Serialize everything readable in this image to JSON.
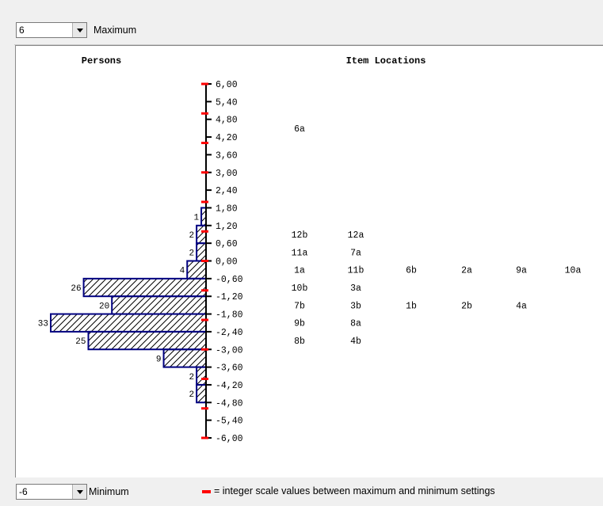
{
  "max_select": {
    "value": "6",
    "label": "Maximum"
  },
  "min_select": {
    "value": "-6",
    "label": "Minimum"
  },
  "legend_text": "= integer scale values between maximum and minimum settings",
  "colors": {
    "bar_border": "#000080",
    "integer_tick": "#ff0000",
    "axis": "#000000"
  },
  "chart_data": {
    "type": "bar",
    "persons_header": "Persons",
    "items_header": "Item Locations",
    "axis_labels": [
      "6,00",
      "5,40",
      "4,80",
      "4,20",
      "3,60",
      "3,00",
      "2,40",
      "1,80",
      "1,20",
      "0,60",
      "0,00",
      "-0,60",
      "-1,20",
      "-1,80",
      "-2,40",
      "-3,00",
      "-3,60",
      "-4,20",
      "-4,80",
      "-5,40",
      "-6,00"
    ],
    "integer_ticks": [
      6,
      5,
      4,
      3,
      2,
      1,
      0,
      -1,
      -2,
      -3,
      -4,
      -5,
      -6
    ],
    "ylim": [
      -6,
      6
    ],
    "persons": [
      {
        "from": 1.8,
        "to": 1.2,
        "count": 1
      },
      {
        "from": 1.2,
        "to": 0.6,
        "count": 2
      },
      {
        "from": 0.6,
        "to": 0.0,
        "count": 2
      },
      {
        "from": 0.0,
        "to": -0.6,
        "count": 4
      },
      {
        "from": -0.6,
        "to": -1.2,
        "count": 26
      },
      {
        "from": -1.2,
        "to": -1.8,
        "count": 20
      },
      {
        "from": -1.8,
        "to": -2.4,
        "count": 33
      },
      {
        "from": -2.4,
        "to": -3.0,
        "count": 25
      },
      {
        "from": -3.0,
        "to": -3.6,
        "count": 9
      },
      {
        "from": -3.6,
        "to": -4.2,
        "count": 2
      },
      {
        "from": -4.2,
        "to": -4.8,
        "count": 2
      }
    ],
    "item_rows": [
      {
        "level": 4.5,
        "items": [
          "6a"
        ]
      },
      {
        "level": 0.9,
        "items": [
          "12b",
          "12a"
        ]
      },
      {
        "level": 0.3,
        "items": [
          "11a",
          "7a"
        ]
      },
      {
        "level": -0.3,
        "items": [
          "1a",
          "11b",
          "6b",
          "2a",
          "9a",
          "10a"
        ]
      },
      {
        "level": -0.9,
        "items": [
          "10b",
          "3a"
        ]
      },
      {
        "level": -1.5,
        "items": [
          "7b",
          "3b",
          "1b",
          "2b",
          "4a"
        ]
      },
      {
        "level": -2.1,
        "items": [
          "9b",
          "8a"
        ]
      },
      {
        "level": -2.7,
        "items": [
          "8b",
          "4b"
        ]
      }
    ]
  }
}
